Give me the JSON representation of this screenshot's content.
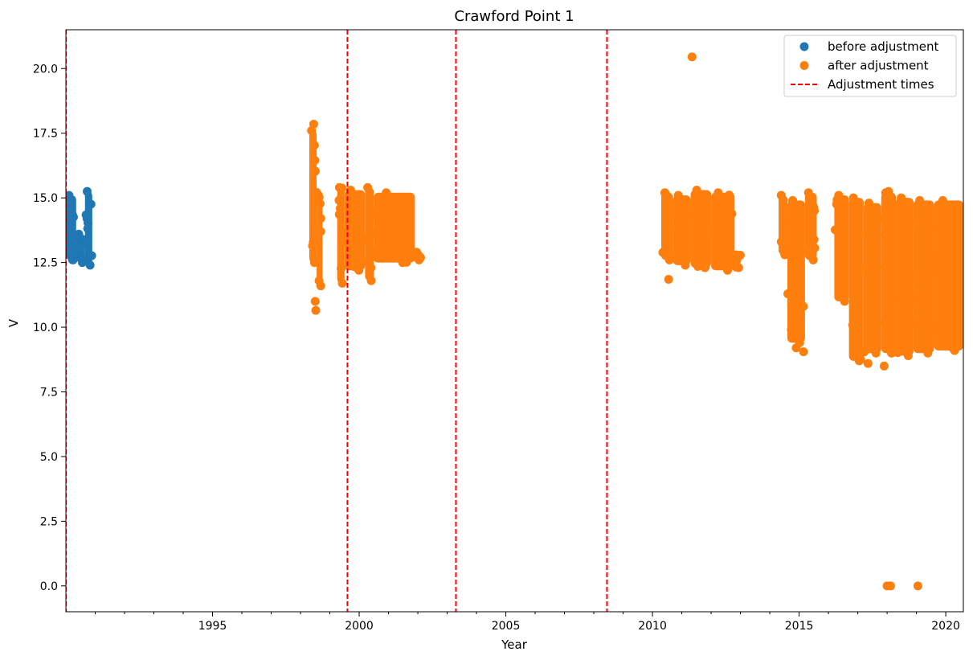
{
  "chart_data": {
    "type": "scatter",
    "title": "Crawford Point 1",
    "xlabel": "Year",
    "ylabel": "V",
    "xlim": [
      1990.0,
      2020.6
    ],
    "ylim": [
      -1.0,
      21.5
    ],
    "x_ticks": [
      1995,
      2000,
      2005,
      2010,
      2015,
      2020
    ],
    "x_tick_labels": [
      "1995",
      "2000",
      "2005",
      "2010",
      "2015",
      "2020"
    ],
    "y_ticks": [
      0.0,
      2.5,
      5.0,
      7.5,
      10.0,
      12.5,
      15.0,
      17.5,
      20.0
    ],
    "y_tick_labels": [
      "0.0",
      "2.5",
      "5.0",
      "7.5",
      "10.0",
      "12.5",
      "15.0",
      "17.5",
      "20.0"
    ],
    "grid": false,
    "legend_position": "top-right",
    "series": [
      {
        "name": "before adjustment",
        "color": "#1f77b4",
        "marker": "circle",
        "ranges": [
          {
            "x0": 1990.0,
            "x1": 1990.35,
            "ylow": 12.6,
            "yhigh": 15.1
          },
          {
            "x0": 1990.35,
            "x1": 1990.65,
            "ylow": 12.5,
            "yhigh": 13.6
          },
          {
            "x0": 1990.65,
            "x1": 1990.9,
            "ylow": 12.4,
            "yhigh": 15.25
          }
        ],
        "points": []
      },
      {
        "name": "after adjustment",
        "color": "#ff7f0e",
        "marker": "circle",
        "ranges": [
          {
            "x0": 1998.3,
            "x1": 1998.55,
            "ylow": 12.5,
            "yhigh": 17.6
          },
          {
            "x0": 1998.55,
            "x1": 1998.75,
            "ylow": 11.6,
            "yhigh": 15.1
          },
          {
            "x0": 1999.25,
            "x1": 1999.5,
            "ylow": 11.7,
            "yhigh": 15.4
          },
          {
            "x0": 1999.5,
            "x1": 2000.2,
            "ylow": 12.2,
            "yhigh": 15.3
          },
          {
            "x0": 2000.2,
            "x1": 2000.5,
            "ylow": 11.8,
            "yhigh": 15.4
          },
          {
            "x0": 2000.5,
            "x1": 2001.9,
            "ylow": 12.5,
            "yhigh": 15.2
          },
          {
            "x0": 2001.9,
            "x1": 2002.1,
            "ylow": 12.6,
            "yhigh": 12.9
          },
          {
            "x0": 2010.3,
            "x1": 2010.7,
            "ylow": 12.6,
            "yhigh": 15.2
          },
          {
            "x0": 2010.7,
            "x1": 2011.3,
            "ylow": 12.4,
            "yhigh": 15.1
          },
          {
            "x0": 2011.3,
            "x1": 2012.0,
            "ylow": 12.3,
            "yhigh": 15.3
          },
          {
            "x0": 2012.0,
            "x1": 2012.8,
            "ylow": 12.2,
            "yhigh": 15.2
          },
          {
            "x0": 2012.8,
            "x1": 2013.0,
            "ylow": 12.3,
            "yhigh": 12.8
          },
          {
            "x0": 2014.3,
            "x1": 2014.6,
            "ylow": 12.8,
            "yhigh": 15.1
          },
          {
            "x0": 2014.6,
            "x1": 2015.2,
            "ylow": 9.4,
            "yhigh": 14.9
          },
          {
            "x0": 2015.2,
            "x1": 2015.6,
            "ylow": 12.6,
            "yhigh": 15.2
          },
          {
            "x0": 2016.2,
            "x1": 2016.7,
            "ylow": 11.0,
            "yhigh": 15.1
          },
          {
            "x0": 2016.7,
            "x1": 2017.2,
            "ylow": 8.7,
            "yhigh": 15.0
          },
          {
            "x0": 2017.2,
            "x1": 2017.8,
            "ylow": 9.0,
            "yhigh": 14.8
          },
          {
            "x0": 2017.8,
            "x1": 2018.3,
            "ylow": 9.0,
            "yhigh": 15.2
          },
          {
            "x0": 2018.3,
            "x1": 2018.9,
            "ylow": 8.9,
            "yhigh": 15.0
          },
          {
            "x0": 2018.9,
            "x1": 2019.6,
            "ylow": 9.0,
            "yhigh": 14.9
          },
          {
            "x0": 2019.6,
            "x1": 2020.6,
            "ylow": 9.1,
            "yhigh": 14.9
          }
        ],
        "points": [
          {
            "x": 1998.45,
            "y": 17.85
          },
          {
            "x": 1998.5,
            "y": 11.0
          },
          {
            "x": 1998.52,
            "y": 10.65
          },
          {
            "x": 2010.55,
            "y": 11.85
          },
          {
            "x": 2011.35,
            "y": 20.45
          },
          {
            "x": 2014.9,
            "y": 9.2
          },
          {
            "x": 2015.15,
            "y": 9.05
          },
          {
            "x": 2017.1,
            "y": 8.75
          },
          {
            "x": 2017.35,
            "y": 8.6
          },
          {
            "x": 2017.9,
            "y": 8.5
          },
          {
            "x": 2018.05,
            "y": 15.25
          },
          {
            "x": 2018.0,
            "y": 0.0
          },
          {
            "x": 2018.12,
            "y": 0.0
          },
          {
            "x": 2019.05,
            "y": 0.0
          }
        ]
      }
    ],
    "vlines": {
      "name": "Adjustment times",
      "color": "#ff0000",
      "style": "dashed",
      "x": [
        1990.0,
        1999.6,
        2003.3,
        2008.45
      ]
    }
  }
}
